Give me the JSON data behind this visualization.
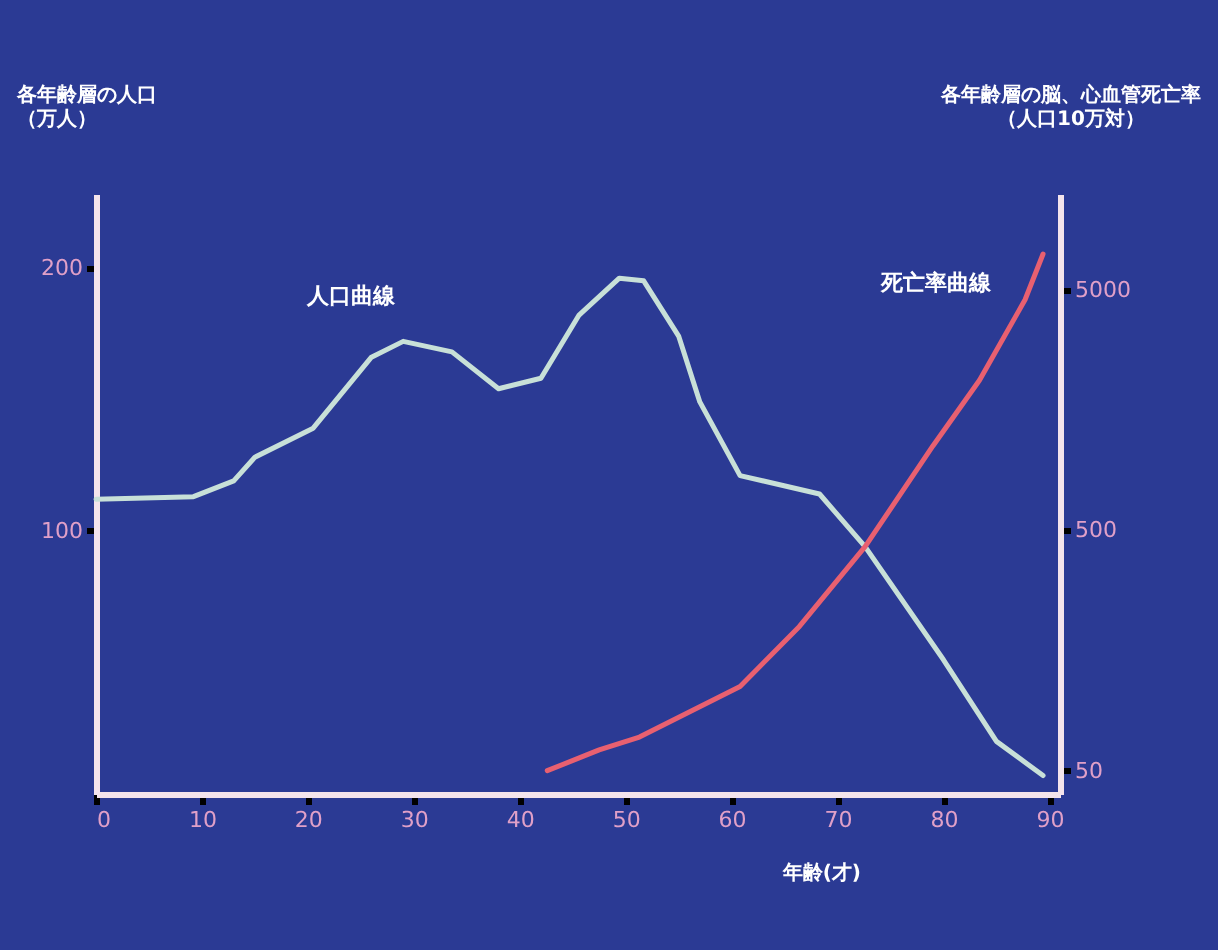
{
  "chart_data": {
    "type": "line",
    "xlabel": "年齢(才)",
    "ylabel": "各年齢層の人口（万人）",
    "y2label": "各年齢層の脳、心血管死亡率（人口10万対）",
    "xlim": [
      0,
      91
    ],
    "xticks": [
      0,
      10,
      20,
      30,
      40,
      50,
      60,
      70,
      80,
      90
    ],
    "ylim": [
      0,
      228
    ],
    "yticks": [
      100,
      200
    ],
    "y2lim": [
      40,
      12500
    ],
    "y2ticks": [
      50,
      500,
      {
        "value": 5000,
        "label": "5000"
      }
    ],
    "log": "y2",
    "grid": false,
    "series": [
      {
        "color": "#c8e0d8",
        "x": [
          0,
          9.2,
          13,
          15,
          20.5,
          26,
          29,
          33.6,
          38,
          42,
          45.6,
          49.4,
          51.7,
          55,
          57,
          60.8,
          68.3,
          72.6,
          80,
          85,
          89.4
        ],
        "values": [
          112,
          113,
          119,
          128,
          139,
          166,
          172,
          168,
          154,
          158,
          182,
          196,
          195,
          174,
          149,
          121,
          114,
          94,
          51,
          20,
          7
        ]
      },
      {
        "color": "#e86070",
        "axis": "y2",
        "x": [
          42.6,
          47.5,
          51.3,
          60.8,
          66.4,
          72.6,
          79,
          83.4,
          87.7,
          89.4
        ],
        "values": [
          50,
          61,
          69,
          112,
          199,
          427,
          1120,
          2100,
          4540,
          7040
        ]
      }
    ],
    "annotations": [
      {
        "text": "人口曲線",
        "x": 26,
        "y": 166
      },
      "死亡率曲線"
    ]
  }
}
